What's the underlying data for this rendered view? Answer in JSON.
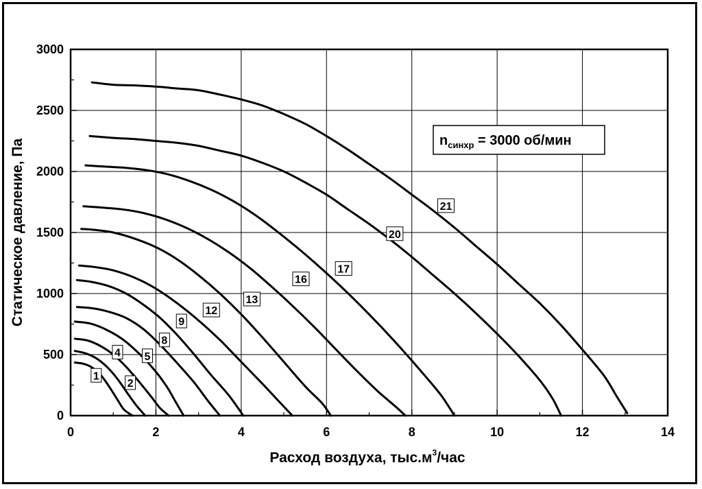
{
  "chart_data": {
    "type": "line",
    "xlabel": "Расход воздуха, тыс.м",
    "xlabel_sup": "3",
    "xlabel_suffix": "/час",
    "ylabel": "Статическое давление, Па",
    "xlim": [
      0,
      14
    ],
    "ylim": [
      0,
      3000
    ],
    "xticks": [
      0,
      2,
      4,
      6,
      8,
      10,
      12,
      14
    ],
    "yticks": [
      0,
      500,
      1000,
      1500,
      2000,
      2500,
      3000
    ],
    "grid": true,
    "annotation": {
      "main": "n",
      "sub": "синхр",
      "rest": " = 3000 об/мин"
    },
    "series": [
      {
        "name": "1",
        "label_at": [
          0.6,
          330
        ],
        "points": [
          [
            0.1,
            435
          ],
          [
            0.3,
            425
          ],
          [
            0.5,
            395
          ],
          [
            0.7,
            335
          ],
          [
            0.9,
            240
          ],
          [
            1.1,
            130
          ],
          [
            1.25,
            50
          ],
          [
            1.45,
            0
          ]
        ]
      },
      {
        "name": "2",
        "label_at": [
          1.4,
          270
        ],
        "points": [
          [
            0.1,
            530
          ],
          [
            0.35,
            510
          ],
          [
            0.6,
            470
          ],
          [
            0.85,
            400
          ],
          [
            1.1,
            300
          ],
          [
            1.35,
            175
          ],
          [
            1.55,
            80
          ],
          [
            1.75,
            0
          ]
        ]
      },
      {
        "name": "4",
        "label_at": [
          1.1,
          520
        ],
        "points": [
          [
            0.1,
            630
          ],
          [
            0.4,
            615
          ],
          [
            0.7,
            570
          ],
          [
            1.0,
            500
          ],
          [
            1.3,
            400
          ],
          [
            1.6,
            280
          ],
          [
            1.9,
            150
          ],
          [
            2.1,
            60
          ],
          [
            2.3,
            0
          ]
        ]
      },
      {
        "name": "5",
        "label_at": [
          1.8,
          490
        ],
        "points": [
          [
            0.1,
            770
          ],
          [
            0.45,
            755
          ],
          [
            0.8,
            710
          ],
          [
            1.2,
            630
          ],
          [
            1.6,
            510
          ],
          [
            1.95,
            380
          ],
          [
            2.25,
            240
          ],
          [
            2.45,
            120
          ],
          [
            2.65,
            0
          ]
        ]
      },
      {
        "name": "8",
        "label_at": [
          2.2,
          620
        ],
        "points": [
          [
            0.15,
            890
          ],
          [
            0.5,
            880
          ],
          [
            0.9,
            850
          ],
          [
            1.3,
            800
          ],
          [
            1.7,
            710
          ],
          [
            2.1,
            580
          ],
          [
            2.5,
            430
          ],
          [
            2.9,
            270
          ],
          [
            3.2,
            130
          ],
          [
            3.5,
            0
          ]
        ]
      },
      {
        "name": "9",
        "label_at": [
          2.6,
          775
        ],
        "points": [
          [
            0.15,
            1110
          ],
          [
            0.5,
            1095
          ],
          [
            0.9,
            1060
          ],
          [
            1.3,
            1000
          ],
          [
            1.7,
            910
          ],
          [
            2.1,
            800
          ],
          [
            2.5,
            660
          ],
          [
            2.9,
            500
          ],
          [
            3.3,
            330
          ],
          [
            3.7,
            170
          ],
          [
            4.05,
            0
          ]
        ]
      },
      {
        "name": "12",
        "label_at": [
          3.3,
          865
        ],
        "points": [
          [
            0.2,
            1230
          ],
          [
            0.6,
            1215
          ],
          [
            1.0,
            1190
          ],
          [
            1.5,
            1130
          ],
          [
            2.0,
            1040
          ],
          [
            2.5,
            920
          ],
          [
            3.0,
            780
          ],
          [
            3.5,
            620
          ],
          [
            4.0,
            440
          ],
          [
            4.5,
            260
          ],
          [
            4.9,
            110
          ],
          [
            5.2,
            0
          ]
        ]
      },
      {
        "name": "13",
        "label_at": [
          4.25,
          955
        ],
        "points": [
          [
            0.25,
            1530
          ],
          [
            0.6,
            1520
          ],
          [
            1.0,
            1500
          ],
          [
            1.5,
            1450
          ],
          [
            2.0,
            1380
          ],
          [
            2.5,
            1280
          ],
          [
            3.0,
            1150
          ],
          [
            3.5,
            1000
          ],
          [
            4.0,
            830
          ],
          [
            4.5,
            640
          ],
          [
            5.0,
            440
          ],
          [
            5.5,
            240
          ],
          [
            5.9,
            100
          ],
          [
            6.1,
            0
          ]
        ]
      },
      {
        "name": "16",
        "label_at": [
          5.4,
          1120
        ],
        "points": [
          [
            0.3,
            1715
          ],
          [
            0.7,
            1705
          ],
          [
            1.2,
            1690
          ],
          [
            1.7,
            1660
          ],
          [
            2.2,
            1610
          ],
          [
            2.7,
            1540
          ],
          [
            3.2,
            1450
          ],
          [
            3.7,
            1340
          ],
          [
            4.2,
            1210
          ],
          [
            4.7,
            1060
          ],
          [
            5.2,
            900
          ],
          [
            5.7,
            730
          ],
          [
            6.2,
            550
          ],
          [
            6.7,
            370
          ],
          [
            7.2,
            200
          ],
          [
            7.6,
            80
          ],
          [
            7.85,
            0
          ]
        ]
      },
      {
        "name": "17",
        "label_at": [
          6.4,
          1205
        ],
        "points": [
          [
            0.35,
            2050
          ],
          [
            0.8,
            2040
          ],
          [
            1.3,
            2030
          ],
          [
            1.8,
            2010
          ],
          [
            2.3,
            1975
          ],
          [
            2.8,
            1920
          ],
          [
            3.3,
            1850
          ],
          [
            3.8,
            1760
          ],
          [
            4.3,
            1650
          ],
          [
            4.8,
            1520
          ],
          [
            5.3,
            1380
          ],
          [
            5.8,
            1230
          ],
          [
            6.3,
            1070
          ],
          [
            6.8,
            900
          ],
          [
            7.3,
            720
          ],
          [
            7.8,
            530
          ],
          [
            8.3,
            330
          ],
          [
            8.7,
            160
          ],
          [
            9.0,
            0
          ]
        ]
      },
      {
        "name": "20",
        "label_at": [
          7.6,
          1490
        ],
        "points": [
          [
            0.45,
            2290
          ],
          [
            1.0,
            2275
          ],
          [
            1.5,
            2265
          ],
          [
            2.0,
            2250
          ],
          [
            2.5,
            2235
          ],
          [
            3.0,
            2210
          ],
          [
            3.5,
            2170
          ],
          [
            4.0,
            2130
          ],
          [
            4.5,
            2070
          ],
          [
            5.0,
            2000
          ],
          [
            5.5,
            1910
          ],
          [
            6.0,
            1810
          ],
          [
            6.5,
            1690
          ],
          [
            7.0,
            1570
          ],
          [
            7.5,
            1440
          ],
          [
            8.0,
            1300
          ],
          [
            8.5,
            1150
          ],
          [
            9.0,
            1000
          ],
          [
            9.5,
            840
          ],
          [
            10.0,
            670
          ],
          [
            10.5,
            490
          ],
          [
            11.0,
            290
          ],
          [
            11.3,
            140
          ],
          [
            11.5,
            0
          ]
        ]
      },
      {
        "name": "21",
        "label_at": [
          8.8,
          1720
        ],
        "points": [
          [
            0.5,
            2730
          ],
          [
            1.0,
            2710
          ],
          [
            1.5,
            2705
          ],
          [
            2.0,
            2695
          ],
          [
            2.5,
            2680
          ],
          [
            3.0,
            2665
          ],
          [
            3.5,
            2630
          ],
          [
            4.0,
            2590
          ],
          [
            4.5,
            2540
          ],
          [
            5.0,
            2470
          ],
          [
            5.5,
            2390
          ],
          [
            6.0,
            2290
          ],
          [
            6.5,
            2180
          ],
          [
            7.0,
            2060
          ],
          [
            7.5,
            1940
          ],
          [
            8.0,
            1810
          ],
          [
            8.5,
            1680
          ],
          [
            9.0,
            1540
          ],
          [
            9.5,
            1390
          ],
          [
            10.0,
            1240
          ],
          [
            10.5,
            1080
          ],
          [
            11.0,
            920
          ],
          [
            11.5,
            740
          ],
          [
            12.0,
            540
          ],
          [
            12.5,
            330
          ],
          [
            12.8,
            160
          ],
          [
            13.05,
            20
          ]
        ]
      }
    ]
  }
}
